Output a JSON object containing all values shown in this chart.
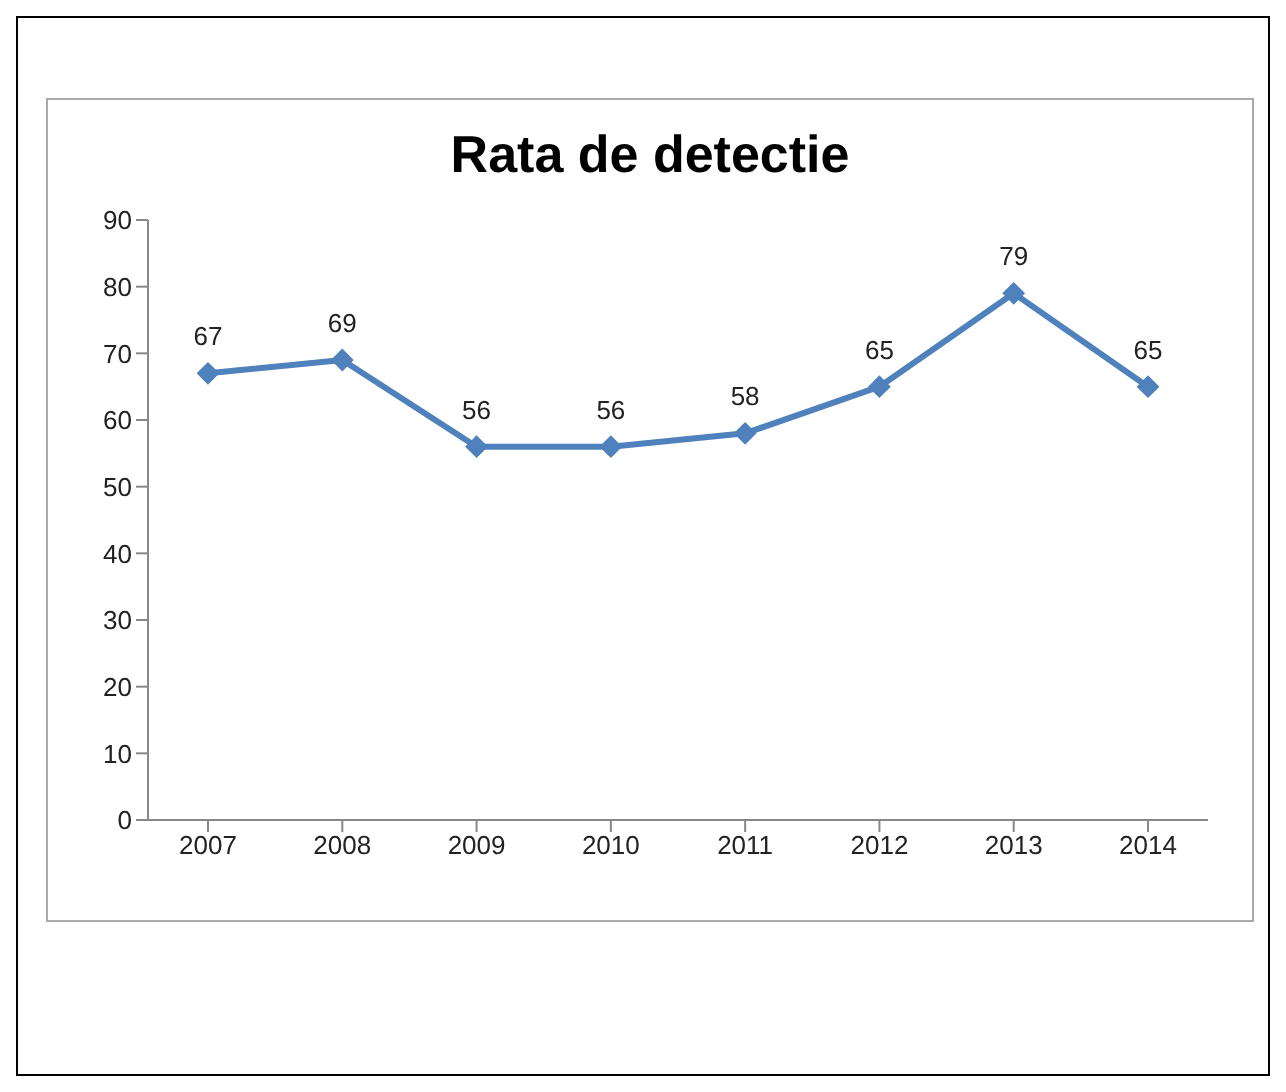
{
  "chart_data": {
    "type": "line",
    "title": "Rata de detectie",
    "categories": [
      "2007",
      "2008",
      "2009",
      "2010",
      "2011",
      "2012",
      "2013",
      "2014"
    ],
    "series": [
      {
        "color": "#4f81bd",
        "values": [
          67,
          69,
          56,
          56,
          58,
          65,
          79,
          65
        ]
      }
    ],
    "ylim": [
      0,
      90
    ],
    "yticks": [
      0,
      10,
      20,
      30,
      40,
      50,
      60,
      70,
      80,
      90
    ],
    "grid": false,
    "legend": false,
    "marker": "diamond",
    "line_style": "solid",
    "data_labels": true
  }
}
